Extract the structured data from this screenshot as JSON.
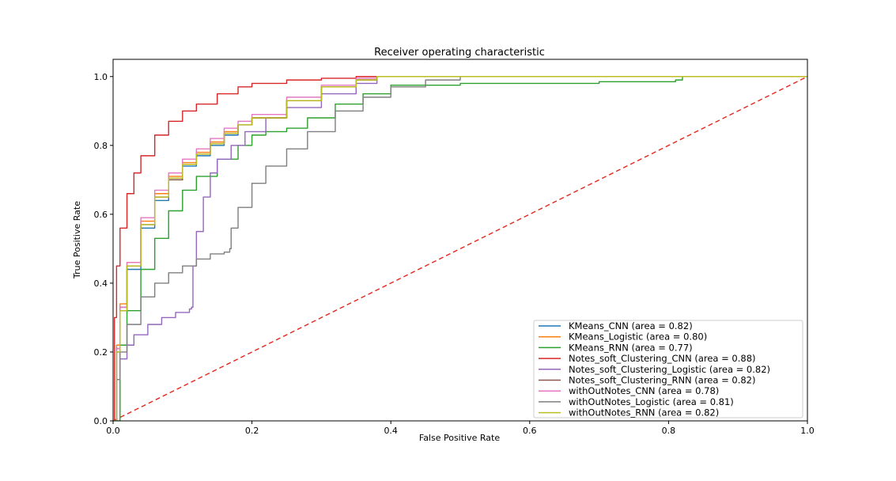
{
  "chart_data": {
    "type": "line",
    "title": "Receiver operating characteristic",
    "xlabel": "False Positive Rate",
    "ylabel": "True Positive Rate",
    "xlim": [
      0.0,
      1.0
    ],
    "ylim": [
      0.0,
      1.05
    ],
    "xticks": [
      "0.0",
      "0.2",
      "0.4",
      "0.6",
      "0.8",
      "1.0"
    ],
    "yticks": [
      "0.0",
      "0.2",
      "0.4",
      "0.6",
      "0.8",
      "1.0"
    ],
    "grid": false,
    "legend_position": "lower-right",
    "reference_line": {
      "x": [
        0,
        1
      ],
      "y": [
        0,
        1
      ],
      "color": "#e3271c",
      "style": "dashed"
    },
    "series": [
      {
        "name": "KMeans_CNN (area = 0.82)",
        "color": "#1f77b4",
        "x": [
          0,
          0.005,
          0.01,
          0.02,
          0.04,
          0.06,
          0.08,
          0.1,
          0.12,
          0.14,
          0.16,
          0.18,
          0.2,
          0.25,
          0.3,
          0.35,
          0.38,
          0.5,
          1.0
        ],
        "y": [
          0,
          0.2,
          0.32,
          0.44,
          0.56,
          0.64,
          0.7,
          0.74,
          0.77,
          0.8,
          0.83,
          0.86,
          0.88,
          0.93,
          0.97,
          0.99,
          1.0,
          1.0,
          1.0
        ]
      },
      {
        "name": "KMeans_Logistic (area = 0.80)",
        "color": "#ff7f0e",
        "x": [
          0,
          0.005,
          0.01,
          0.02,
          0.04,
          0.06,
          0.08,
          0.1,
          0.12,
          0.14,
          0.16,
          0.18,
          0.2,
          0.25,
          0.3,
          0.35,
          0.38,
          0.5,
          1.0
        ],
        "y": [
          0,
          0.22,
          0.34,
          0.46,
          0.58,
          0.66,
          0.71,
          0.75,
          0.78,
          0.81,
          0.84,
          0.86,
          0.88,
          0.93,
          0.97,
          0.99,
          1.0,
          1.0,
          1.0
        ]
      },
      {
        "name": "KMeans_RNN (area = 0.77)",
        "color": "#2ca02c",
        "x": [
          0,
          0.01,
          0.02,
          0.04,
          0.06,
          0.08,
          0.1,
          0.12,
          0.15,
          0.18,
          0.2,
          0.22,
          0.25,
          0.28,
          0.32,
          0.36,
          0.4,
          0.5,
          0.7,
          0.81,
          0.82,
          1.0
        ],
        "y": [
          0,
          0.22,
          0.32,
          0.44,
          0.53,
          0.61,
          0.67,
          0.71,
          0.76,
          0.8,
          0.83,
          0.84,
          0.85,
          0.88,
          0.92,
          0.95,
          0.975,
          0.98,
          0.985,
          0.99,
          1.0,
          1.0
        ]
      },
      {
        "name": "Notes_soft_Clustering_CNN (area = 0.88)",
        "color": "#d62728",
        "x": [
          0,
          0.002,
          0.005,
          0.01,
          0.02,
          0.03,
          0.04,
          0.06,
          0.08,
          0.1,
          0.12,
          0.15,
          0.18,
          0.2,
          0.25,
          0.3,
          0.35,
          0.4,
          1.0
        ],
        "y": [
          0,
          0.3,
          0.45,
          0.56,
          0.66,
          0.72,
          0.77,
          0.83,
          0.87,
          0.9,
          0.92,
          0.95,
          0.97,
          0.98,
          0.99,
          0.995,
          1.0,
          1.0,
          1.0
        ]
      },
      {
        "name": "Notes_soft_Clustering_Logistic (area = 0.82)",
        "color": "#9467bd",
        "x": [
          0,
          0.005,
          0.01,
          0.02,
          0.03,
          0.05,
          0.07,
          0.09,
          0.11,
          0.113,
          0.115,
          0.12,
          0.13,
          0.14,
          0.15,
          0.17,
          0.19,
          0.22,
          0.25,
          0.3,
          0.35,
          0.38,
          1.0
        ],
        "y": [
          0,
          0.12,
          0.18,
          0.22,
          0.25,
          0.28,
          0.3,
          0.315,
          0.325,
          0.33,
          0.45,
          0.55,
          0.65,
          0.72,
          0.76,
          0.8,
          0.84,
          0.88,
          0.91,
          0.95,
          0.98,
          1.0,
          1.0
        ]
      },
      {
        "name": "Notes_soft_Clustering_RNN (area = 0.82)",
        "color": "#8c564b",
        "x": [
          0,
          0.005,
          0.01,
          0.02,
          0.04,
          0.06,
          0.08,
          0.1,
          0.12,
          0.14,
          0.16,
          0.18,
          0.2,
          0.25,
          0.3,
          0.35,
          0.38,
          0.5,
          1.0
        ],
        "y": [
          0,
          0.21,
          0.33,
          0.45,
          0.57,
          0.65,
          0.7,
          0.745,
          0.775,
          0.805,
          0.835,
          0.86,
          0.88,
          0.93,
          0.97,
          0.99,
          1.0,
          1.0,
          1.0
        ]
      },
      {
        "name": "withOutNotes_CNN (area = 0.78)",
        "color": "#e377c2",
        "x": [
          0,
          0.005,
          0.01,
          0.02,
          0.04,
          0.06,
          0.08,
          0.1,
          0.12,
          0.14,
          0.16,
          0.18,
          0.2,
          0.25,
          0.3,
          0.35,
          0.38,
          0.5,
          1.0
        ],
        "y": [
          0,
          0.21,
          0.33,
          0.46,
          0.59,
          0.67,
          0.72,
          0.76,
          0.79,
          0.82,
          0.85,
          0.87,
          0.89,
          0.94,
          0.975,
          0.995,
          1.0,
          1.0,
          1.0
        ]
      },
      {
        "name": "withOutNotes_Logistic (area = 0.81)",
        "color": "#7f7f7f",
        "x": [
          0,
          0.005,
          0.01,
          0.02,
          0.04,
          0.06,
          0.08,
          0.1,
          0.12,
          0.14,
          0.16,
          0.168,
          0.17,
          0.18,
          0.2,
          0.22,
          0.25,
          0.28,
          0.32,
          0.36,
          0.4,
          0.45,
          0.5,
          1.0
        ],
        "y": [
          0,
          0.12,
          0.2,
          0.28,
          0.36,
          0.4,
          0.43,
          0.45,
          0.47,
          0.485,
          0.49,
          0.5,
          0.56,
          0.62,
          0.69,
          0.74,
          0.79,
          0.84,
          0.9,
          0.94,
          0.97,
          0.99,
          1.0,
          1.0
        ]
      },
      {
        "name": "withOutNotes_RNN (area = 0.82)",
        "color": "#bcbd22",
        "x": [
          0,
          0.005,
          0.01,
          0.02,
          0.04,
          0.06,
          0.08,
          0.1,
          0.12,
          0.14,
          0.16,
          0.18,
          0.2,
          0.25,
          0.3,
          0.35,
          0.38,
          0.5,
          1.0
        ],
        "y": [
          0,
          0.2,
          0.32,
          0.45,
          0.57,
          0.65,
          0.705,
          0.745,
          0.775,
          0.805,
          0.835,
          0.86,
          0.88,
          0.93,
          0.97,
          0.99,
          1.0,
          1.0,
          1.0
        ]
      }
    ]
  }
}
